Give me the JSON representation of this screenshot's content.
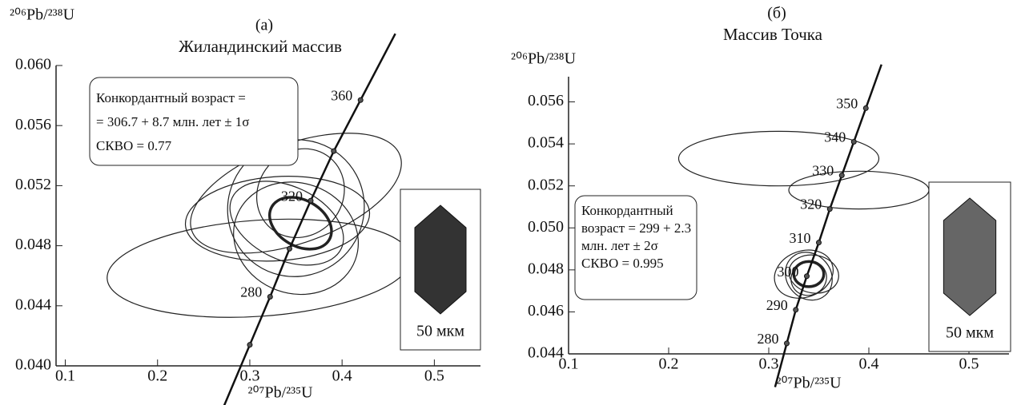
{
  "chart_data": [
    {
      "type": "concordia",
      "title": "(а)",
      "subtitle": "Жиландинский массив",
      "x_label": "²⁰⁷Pb/²³⁵U",
      "y_label": "²⁰⁶Pb/²³⁸U",
      "xlim": [
        0.09,
        0.55
      ],
      "ylim": [
        0.04,
        0.06
      ],
      "xticks": [
        0.1,
        0.2,
        0.3,
        0.4,
        0.5
      ],
      "yticks": [
        {
          "value": 0.04,
          "label": "0.040"
        },
        {
          "value": 0.044,
          "label": "0.044"
        },
        {
          "value": 0.048,
          "label": "0.048"
        },
        {
          "value": 0.052,
          "label": "0.052"
        },
        {
          "value": 0.056,
          "label": "0.056"
        },
        {
          "value": 0.06,
          "label": "0.060"
        }
      ],
      "concordia": {
        "x": [
          0.3,
          0.322,
          0.343,
          0.366,
          0.391,
          0.42
        ],
        "y": [
          0.0414,
          0.0446,
          0.0478,
          0.051,
          0.0543,
          0.0577
        ],
        "ages": [
          null,
          280,
          null,
          320,
          null,
          360
        ]
      },
      "ellipses": {
        "x": [
          0.31,
          0.33,
          0.35,
          0.35,
          0.35,
          0.34,
          0.355,
          0.355
        ],
        "y": [
          0.0465,
          0.0498,
          0.0515,
          0.0505,
          0.0485,
          0.0495,
          0.0515,
          0.0495
        ],
        "rx": [
          0.165,
          0.1,
          0.12,
          0.075,
          0.06,
          0.04,
          0.05,
          0.025
        ],
        "ry": [
          0.0032,
          0.0028,
          0.0033,
          0.0045,
          0.0042,
          0.004,
          0.0028,
          0.0022
        ],
        "angle": [
          -4,
          -4,
          -20,
          -50,
          -70,
          -65,
          -50,
          -60
        ],
        "bold": [
          false,
          false,
          false,
          false,
          false,
          false,
          false,
          true
        ]
      },
      "annotation": [
        "Конкордантный возраст =",
        "= 306.7 + 8.7 млн. лет ± 1σ",
        "СКВО = 0.77"
      ],
      "scale_label": "50 мкм"
    },
    {
      "type": "concordia",
      "title": "(б)",
      "subtitle": "Массив Точка",
      "x_label": "²⁰⁷Pb/²³⁵U",
      "y_label": "²⁰⁶Pb/²³⁸U",
      "xlim": [
        0.1,
        0.54
      ],
      "ylim": [
        0.044,
        0.0572
      ],
      "xticks": [
        0.1,
        0.2,
        0.3,
        0.4,
        0.5
      ],
      "yticks": [
        {
          "value": 0.044,
          "label": "0.044"
        },
        {
          "value": 0.046,
          "label": "0.046"
        },
        {
          "value": 0.048,
          "label": "0.048"
        },
        {
          "value": 0.05,
          "label": "0.050"
        },
        {
          "value": 0.052,
          "label": "0.052"
        },
        {
          "value": 0.054,
          "label": "0.054"
        },
        {
          "value": 0.056,
          "label": "0.056"
        }
      ],
      "concordia": {
        "x": [
          0.318,
          0.327,
          0.338,
          0.35,
          0.361,
          0.373,
          0.385,
          0.397
        ],
        "y": [
          0.0445,
          0.0461,
          0.0477,
          0.0493,
          0.0509,
          0.0525,
          0.0541,
          0.0557
        ],
        "ages": [
          280,
          290,
          300,
          310,
          320,
          330,
          340,
          350
        ]
      },
      "ellipses": {
        "x": [
          0.31,
          0.39,
          0.335,
          0.34,
          0.345,
          0.34,
          0.34
        ],
        "y": [
          0.0533,
          0.0518,
          0.0478,
          0.0477,
          0.0478,
          0.0476,
          0.0478
        ],
        "rx": [
          0.1,
          0.07,
          0.03,
          0.022,
          0.025,
          0.018,
          0.015
        ],
        "ry": [
          0.0013,
          0.0009,
          0.0011,
          0.0012,
          0.0009,
          0.0008,
          0.0006
        ],
        "angle": [
          0,
          0,
          -20,
          -40,
          10,
          -30,
          0
        ],
        "bold": [
          false,
          false,
          false,
          false,
          false,
          false,
          true
        ]
      },
      "annotation": [
        "Конкордантный",
        "возраст = 299 + 2.3",
        "млн. лет ± 2σ",
        "СКВО = 0.995"
      ],
      "scale_label": "50 мкм"
    }
  ]
}
